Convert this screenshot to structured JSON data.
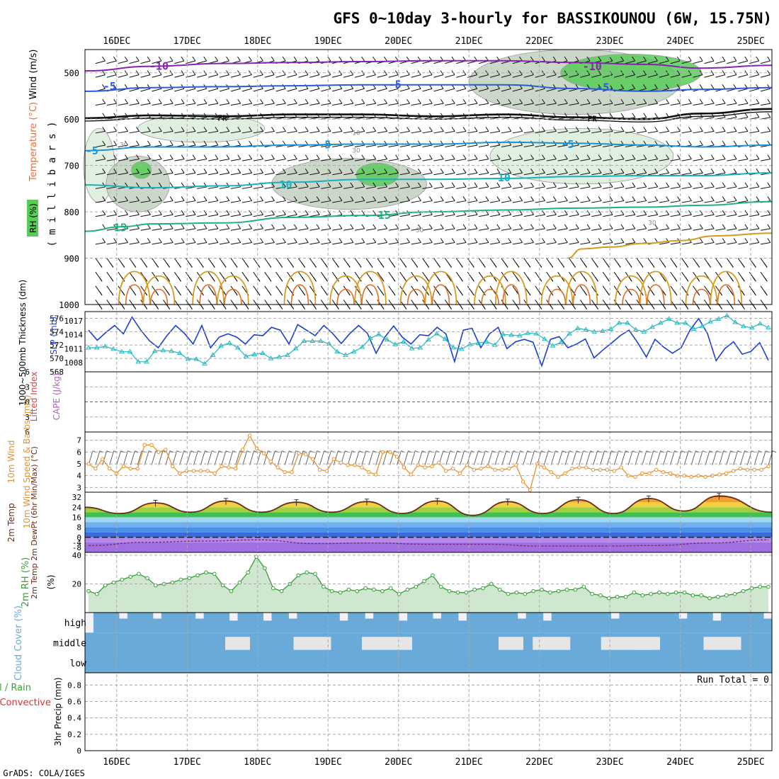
{
  "title": "GFS 0~10day 3-hourly for BASSIKOUNOU (6W, 15.75N)",
  "footer": "GrADS: COLA/IGES",
  "colors": {
    "text": "#000000",
    "grid": "#aaaaaa",
    "slp": "#1a3fd0",
    "thickness": "#22b8c0",
    "wind": "#e8902a",
    "temp": "#6a2a1a",
    "dewpt": "#7a2a7a",
    "rh": "#3a9a3a",
    "cloud": "#6aaad8",
    "cloud_clear": "#f4f0f8",
    "cloud_mid": "#e6e6e6",
    "li_zero": "#e03030"
  },
  "x_axis": {
    "ticks": [
      "16DEC",
      "17DEC",
      "18DEC",
      "19DEC",
      "20DEC",
      "21DEC",
      "22DEC",
      "23DEC",
      "24DEC",
      "25DEC"
    ],
    "start_day": 15.55,
    "end_day": 25.3
  },
  "chart_data": [
    {
      "type": "contour",
      "panel": "upper-air",
      "ylabel_rh": "RH (%)",
      "ylabel_temp": "Temperature (°C)",
      "ylabel_wind": "Wind (m/s)",
      "ylabel_pressure": "( m i l l i b a r s )",
      "y_ticks": [
        500,
        600,
        700,
        800,
        900,
        1000
      ],
      "ylim": [
        1000,
        450
      ],
      "isotherm_labels": [
        {
          "text": "-10",
          "day": 16.6,
          "p": 484
        },
        {
          "text": "-10",
          "day": 22.75,
          "p": 485
        },
        {
          "text": "-5",
          "day": 15.9,
          "p": 528
        },
        {
          "text": "-5",
          "day": 19.95,
          "p": 524
        },
        {
          "text": "-5",
          "day": 22.9,
          "p": 530
        },
        {
          "text": "FR",
          "day": 17.5,
          "p": 594
        },
        {
          "text": "FR",
          "day": 22.75,
          "p": 596
        },
        {
          "text": "-5",
          "day": 15.65,
          "p": 667
        },
        {
          "text": "-5",
          "day": 18.95,
          "p": 654
        },
        {
          "text": "-5",
          "day": 22.4,
          "p": 653
        },
        {
          "text": "10",
          "day": 18.4,
          "p": 740
        },
        {
          "text": "10",
          "day": 21.5,
          "p": 725
        },
        {
          "text": "15",
          "day": 16.05,
          "p": 833
        },
        {
          "text": "15",
          "day": 19.8,
          "p": 806
        }
      ],
      "rh_labels": [
        {
          "text": "10",
          "day": 19.4,
          "p": 628
        },
        {
          "text": "30",
          "day": 16.1,
          "p": 654
        },
        {
          "text": "30",
          "day": 19.4,
          "p": 666
        },
        {
          "text": "30",
          "day": 20.3,
          "p": 838
        },
        {
          "text": "30",
          "day": 23.6,
          "p": 822
        }
      ],
      "isotherms": [
        {
          "name": "-10",
          "color": "#8a22b0",
          "points": [
            [
              15.55,
              496
            ],
            [
              16.5,
              486
            ],
            [
              17.5,
              480
            ],
            [
              18.5,
              478
            ],
            [
              19.5,
              476
            ],
            [
              20.5,
              474
            ],
            [
              21.5,
              474
            ],
            [
              22.5,
              478
            ],
            [
              23.5,
              482
            ],
            [
              24.3,
              490
            ],
            [
              25.3,
              484
            ]
          ]
        },
        {
          "name": "-5",
          "color": "#2a5ae0",
          "points": [
            [
              15.55,
              540
            ],
            [
              16.5,
              532
            ],
            [
              17.5,
              530
            ],
            [
              18.5,
              528
            ],
            [
              19.5,
              526
            ],
            [
              20.5,
              526
            ],
            [
              21.5,
              526
            ],
            [
              22.5,
              534
            ],
            [
              23.5,
              540
            ],
            [
              24.3,
              536
            ],
            [
              25.3,
              532
            ]
          ]
        },
        {
          "name": "FR",
          "color": "#111111",
          "points": [
            [
              15.55,
              598
            ],
            [
              16.5,
              592
            ],
            [
              17.5,
              594
            ],
            [
              18.5,
              590
            ],
            [
              19.5,
              590
            ],
            [
              20.5,
              594
            ],
            [
              21.5,
              590
            ],
            [
              22.5,
              596
            ],
            [
              23.5,
              600
            ],
            [
              24.3,
              588
            ],
            [
              25.3,
              578
            ]
          ]
        },
        {
          "name": "5",
          "color": "#1a90d8",
          "points": [
            [
              15.55,
              668
            ],
            [
              16.5,
              660
            ],
            [
              17.5,
              660
            ],
            [
              18.5,
              656
            ],
            [
              19.5,
              654
            ],
            [
              20.5,
              654
            ],
            [
              21.5,
              650
            ],
            [
              22.5,
              652
            ],
            [
              23.5,
              656
            ],
            [
              24.3,
              660
            ],
            [
              25.3,
              656
            ]
          ]
        },
        {
          "name": "10",
          "color": "#18b0c0",
          "points": [
            [
              15.55,
              742
            ],
            [
              16.5,
              748
            ],
            [
              17.5,
              744
            ],
            [
              18.5,
              736
            ],
            [
              19.5,
              730
            ],
            [
              20.5,
              730
            ],
            [
              21.5,
              728
            ],
            [
              22.5,
              724
            ],
            [
              23.5,
              722
            ],
            [
              24.3,
              722
            ],
            [
              25.3,
              716
            ]
          ]
        },
        {
          "name": "15",
          "color": "#20b080",
          "points": [
            [
              15.55,
              842
            ],
            [
              16.1,
              832
            ],
            [
              16.5,
              826
            ],
            [
              17.5,
              824
            ],
            [
              18.5,
              812
            ],
            [
              19.5,
              808
            ],
            [
              20.5,
              800
            ],
            [
              21.5,
              796
            ],
            [
              22.5,
              792
            ],
            [
              23.5,
              790
            ],
            [
              24.3,
              786
            ],
            [
              25.3,
              778
            ]
          ]
        },
        {
          "name": "20",
          "color": "#d89a20",
          "points": [
            [
              22.4,
              900
            ],
            [
              22.6,
              880
            ],
            [
              23.0,
              876
            ],
            [
              23.5,
              868
            ],
            [
              24.0,
              862
            ],
            [
              24.5,
              852
            ],
            [
              25.3,
              846
            ]
          ]
        }
      ],
      "diurnal_loops": [
        16.25,
        16.6,
        17.3,
        17.65,
        18.6,
        19.25,
        19.6,
        20.25,
        20.6,
        21.3,
        21.6,
        22.25,
        22.6,
        23.3,
        23.65,
        24.3,
        24.65
      ],
      "rh_blobs": [
        {
          "cx": 15.75,
          "cy": 700,
          "rx": 0.22,
          "ry": 80,
          "level": "light"
        },
        {
          "cx": 16.3,
          "cy": 740,
          "rx": 0.45,
          "ry": 60,
          "level": "mid"
        },
        {
          "cx": 19.3,
          "cy": 740,
          "rx": 1.1,
          "ry": 55,
          "level": "mid"
        },
        {
          "cx": 19.7,
          "cy": 720,
          "rx": 0.3,
          "ry": 25,
          "level": "green"
        },
        {
          "cx": 16.35,
          "cy": 710,
          "rx": 0.14,
          "ry": 18,
          "level": "green"
        },
        {
          "cx": 22.5,
          "cy": 520,
          "rx": 1.5,
          "ry": 70,
          "level": "mid"
        },
        {
          "cx": 23.3,
          "cy": 500,
          "rx": 1.0,
          "ry": 40,
          "level": "green"
        },
        {
          "cx": 22.6,
          "cy": 680,
          "rx": 1.3,
          "ry": 60,
          "level": "light"
        },
        {
          "cx": 17.2,
          "cy": 620,
          "rx": 0.9,
          "ry": 30,
          "level": "light"
        }
      ]
    },
    {
      "type": "line",
      "panel": "slp-thickness",
      "ylabel_thickness": "1000~500mb Thickness (dm)",
      "ylabel_slp": "SLP (mb)",
      "y_ticks_left": [
        568,
        570,
        572,
        574,
        576
      ],
      "y_ticks_right": [
        1008,
        1011,
        1014,
        1017
      ],
      "slp": [
        1015,
        1012.8,
        1014.5,
        1016,
        1014.2,
        1017.8,
        1015,
        1012.7,
        1011.2,
        1013.8,
        1016,
        1014.3,
        1012,
        1016,
        1011.2,
        1013.5,
        1014.2,
        1013.5,
        1012,
        1014,
        1013.8,
        1015.6,
        1015,
        1012,
        1016.2,
        1015,
        1013.8,
        1016,
        1014.3,
        1012.1,
        1014.3,
        1016,
        1014.3,
        1010,
        1013.5,
        1015.9,
        1013.5,
        1012,
        1014,
        1013.8,
        1015.6,
        1014.2,
        1008.2,
        1015,
        1015.4,
        1011.2,
        1014.2,
        1015.6,
        1011,
        1012.5,
        1013,
        1012.4,
        1007.3,
        1013,
        1013.6,
        1011.2,
        1012,
        1013.1,
        1009,
        1010.7,
        1012.2,
        1013.8,
        1015,
        1012.3,
        1009.2,
        1013,
        1011.3,
        1010,
        1011.2,
        1015,
        1017.5,
        1014.3,
        1008.4,
        1011,
        1012.5,
        1009.8,
        1010.4,
        1012.3,
        1008.5
      ],
      "thickness": [
        571.6,
        571.6,
        571.8,
        571.4,
        571,
        571,
        569.5,
        569.5,
        571.1,
        571.2,
        571.1,
        570.8,
        569.9,
        569.9,
        569.2,
        570.5,
        571.9,
        572.3,
        571.6,
        570.3,
        570.6,
        570.8,
        570,
        570.2,
        570.5,
        571.5,
        572.6,
        572.6,
        572.6,
        572.2,
        571,
        570.5,
        571,
        571.7,
        573,
        573.6,
        572.8,
        572.1,
        572.5,
        571.5,
        571.6,
        572.8,
        573.7,
        572.9,
        571.6,
        571.4,
        572.1,
        572.3,
        572.5,
        572,
        573.6,
        573.5,
        573.4,
        573.8,
        573.7,
        572.9,
        571.9,
        572.4,
        573.7,
        574.5,
        574.3,
        574,
        574.1,
        574.4,
        575.3,
        575.3,
        574.3,
        574,
        574.7,
        575.3,
        575.9,
        575.3,
        575.3,
        574.4,
        574.8,
        575.5,
        575.9,
        576.4,
        575.4,
        574.8,
        574.6,
        575.2,
        574.6
      ],
      "slp_range": [
        1006,
        1019
      ],
      "thickness_range": [
        568,
        577
      ]
    },
    {
      "type": "line",
      "panel": "stability",
      "ylabel_li": "Lifted Index",
      "ylabel_cape": "CAPE (J/kg)",
      "y_ticks": [
        -6,
        -3,
        0,
        3,
        6
      ],
      "lifted_index": [],
      "cape": []
    },
    {
      "type": "line",
      "panel": "wind",
      "ylabel": "10m Wind Speed & Barbs (m/s)",
      "y_ticks": [
        3,
        4,
        5,
        6,
        7
      ],
      "ylim": [
        2.6,
        7.7
      ],
      "values": [
        5.0,
        4.6,
        5.4,
        4.6,
        4.2,
        4.8,
        4.6,
        4.6,
        6.6,
        6.6,
        6.0,
        6.2,
        4.8,
        4.2,
        4.4,
        4.4,
        4.4,
        4.4,
        4.2,
        4.8,
        4.7,
        4.6,
        6.2,
        7.4,
        6.3,
        5.9,
        5.2,
        4.7,
        4.3,
        4.3,
        5.9,
        5.8,
        5.4,
        4.5,
        4.4,
        5.4,
        5.1,
        4.9,
        4.9,
        4.7,
        4.3,
        4.1,
        6.0,
        6.0,
        5.6,
        4.7,
        4.1,
        4.9,
        4.7,
        4.8,
        5.1,
        4.4,
        4.6,
        4.2,
        4.9,
        4.5,
        4.6,
        4.8,
        4.5,
        4.5,
        4.6,
        4.9,
        3.5,
        2.8,
        5.0,
        4.7,
        4.3,
        3.9,
        4.2,
        4.6,
        4.7,
        4.7,
        4.5,
        4.5,
        4.5,
        4.4,
        4.7,
        4.0,
        3.9,
        4.2,
        4.2,
        4.5,
        4.3,
        4.2,
        4.0,
        4.0,
        3.9,
        4.0,
        3.9,
        4.0,
        4.1,
        4.2,
        4.4,
        4.6,
        4.5,
        4.5,
        4.5,
        4.8
      ]
    },
    {
      "type": "area",
      "panel": "temperature",
      "ylabel": "2m Temp 2m DewPt (6hr Min/Max) (°C)",
      "y_ticks": [
        -8,
        -4,
        0,
        8,
        16,
        24,
        32
      ],
      "ylim": [
        -12,
        36
      ],
      "temp_max_days": [
        16.55,
        17.55,
        18.55,
        19.55,
        20.55,
        21.55,
        22.55,
        23.55,
        24.55
      ],
      "temp_max": [
        27.5,
        29,
        28,
        28.5,
        29,
        28.5,
        30,
        31,
        33
      ],
      "temp_min": [
        19,
        20,
        20,
        20,
        19,
        17.5,
        19,
        19,
        21
      ],
      "dewpt": [
        -6.5,
        -4,
        -3,
        -2,
        -5,
        -4.5,
        -5.5,
        -5.5,
        -7,
        -7,
        -6.5,
        -4.5,
        -2
      ]
    },
    {
      "type": "area",
      "panel": "relative-humidity",
      "ylabel": "2m RH (%)",
      "y_ticks": [
        20,
        40
      ],
      "ylim": [
        0,
        42
      ],
      "values": [
        15,
        13,
        19,
        21,
        23,
        25,
        27,
        24,
        19,
        20,
        21,
        23,
        24,
        26,
        28,
        27,
        19,
        15,
        21,
        28,
        39,
        31,
        17,
        15,
        20,
        26,
        28,
        27,
        18,
        15,
        14,
        16,
        15,
        17,
        16,
        15,
        17,
        13,
        16,
        18,
        22,
        26,
        18,
        15,
        14,
        14,
        16,
        17,
        20,
        16,
        13,
        14,
        13,
        15,
        16,
        14,
        15,
        16,
        16,
        18,
        13,
        12,
        10,
        11,
        11,
        14,
        12,
        13,
        14,
        13,
        14,
        14,
        12,
        12,
        10,
        11,
        12,
        13,
        15,
        17,
        18,
        18
      ]
    },
    {
      "type": "heatmap",
      "panel": "cloud-cover",
      "ylabel": "Cloud Cover (%)",
      "rows": [
        "high",
        "middle",
        "low"
      ],
      "high_cover": [
        100,
        100,
        100,
        70,
        100,
        100,
        100,
        70,
        100,
        100,
        100,
        100,
        70,
        100,
        100,
        100,
        60,
        100,
        100,
        100,
        60,
        100,
        100,
        70,
        100,
        100,
        100,
        100,
        100,
        60,
        100,
        100,
        70,
        100,
        100,
        100,
        60,
        100,
        100,
        100,
        70,
        100,
        100,
        60,
        100,
        100,
        100,
        100,
        100,
        100,
        70,
        100,
        100,
        60,
        100,
        100,
        100,
        100,
        100,
        100,
        100,
        70,
        100,
        100,
        100,
        100,
        100,
        100,
        100,
        70,
        100,
        100,
        100,
        60,
        100,
        100,
        100,
        100,
        100,
        70
      ],
      "mid_gaps": [
        20,
        30,
        40,
        60,
        65,
        75,
        80,
        90
      ]
    },
    {
      "type": "bar",
      "panel": "precipitation",
      "ylabel_left": "Total / Rain Convective",
      "ylabel_right": "3hr Precip (mm)",
      "y_ticks": [
        0,
        0.2,
        0.4,
        0.6,
        0.8
      ],
      "ylim": [
        0,
        0.95
      ],
      "run_total": "Run Total = 0",
      "values": []
    }
  ]
}
